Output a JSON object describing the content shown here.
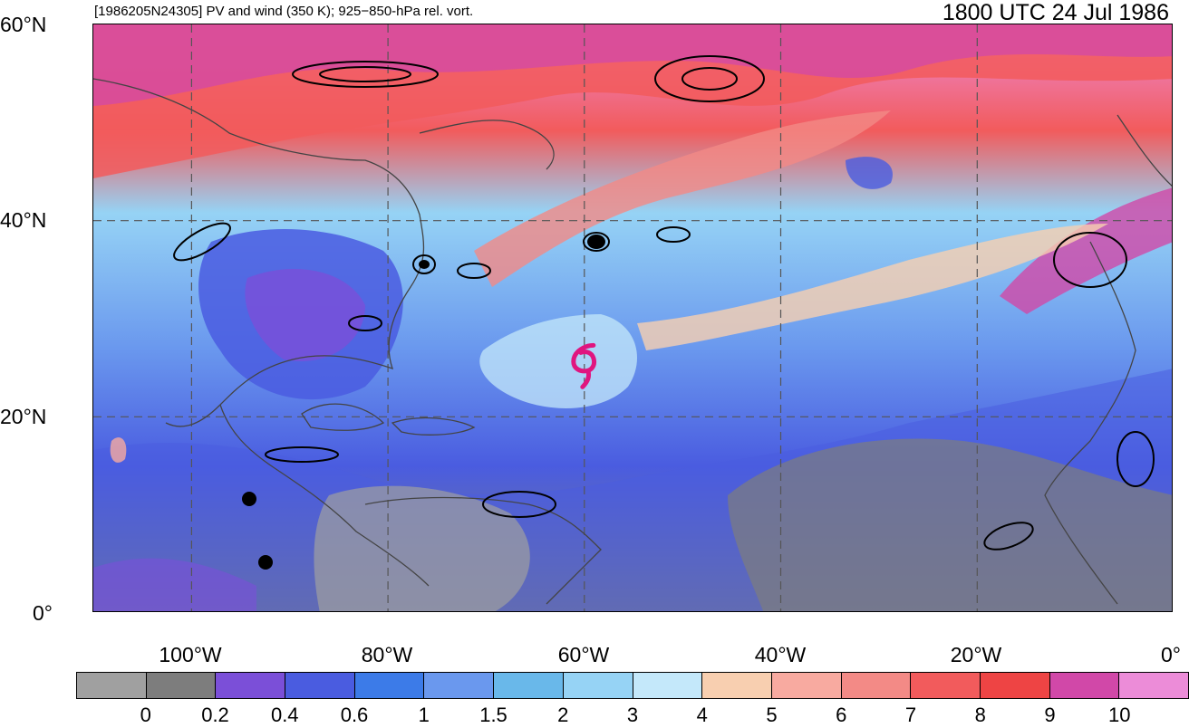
{
  "header": {
    "subtitle": "[1986205N24305] PV and wind (350 K); 925−850-hPa rel. vort.",
    "datetime": "1800 UTC 24 Jul 1986"
  },
  "map": {
    "projection": "cylindrical-equidistant",
    "lon_range": [
      -110,
      0
    ],
    "lat_range": [
      0,
      60
    ],
    "lat_labels": [
      {
        "lat": 60,
        "text": "60°N"
      },
      {
        "lat": 40,
        "text": "40°N"
      },
      {
        "lat": 20,
        "text": "20°N"
      },
      {
        "lat": 0,
        "text": "0°"
      }
    ],
    "lon_labels": [
      {
        "lon": -100,
        "text": "100°W"
      },
      {
        "lon": -80,
        "text": "80°W"
      },
      {
        "lon": -60,
        "text": "60°W"
      },
      {
        "lon": -40,
        "text": "40°W"
      },
      {
        "lon": -20,
        "text": "20°W"
      },
      {
        "lon": 0,
        "text": "0°"
      }
    ],
    "grid_lines": true,
    "storm_symbol": {
      "lon": -60,
      "lat": 26,
      "color": "#e0157f",
      "icon": "tropical-cyclone-icon"
    }
  },
  "colorbar": {
    "colors": [
      "#a0a0a0",
      "#7d7d7d",
      "#7b4fd8",
      "#4a5ce0",
      "#3c7be8",
      "#6a98ee",
      "#69b8ea",
      "#96d3f5",
      "#c4e8fa",
      "#f8cfb0",
      "#f8aaa0",
      "#f38a86",
      "#f25b5c",
      "#ee4444",
      "#d148a8",
      "#ec8cd8"
    ],
    "labels": [
      "0",
      "0.2",
      "0.4",
      "0.6",
      "1",
      "1.5",
      "2",
      "3",
      "4",
      "5",
      "6",
      "7",
      "8",
      "9",
      "10"
    ]
  }
}
